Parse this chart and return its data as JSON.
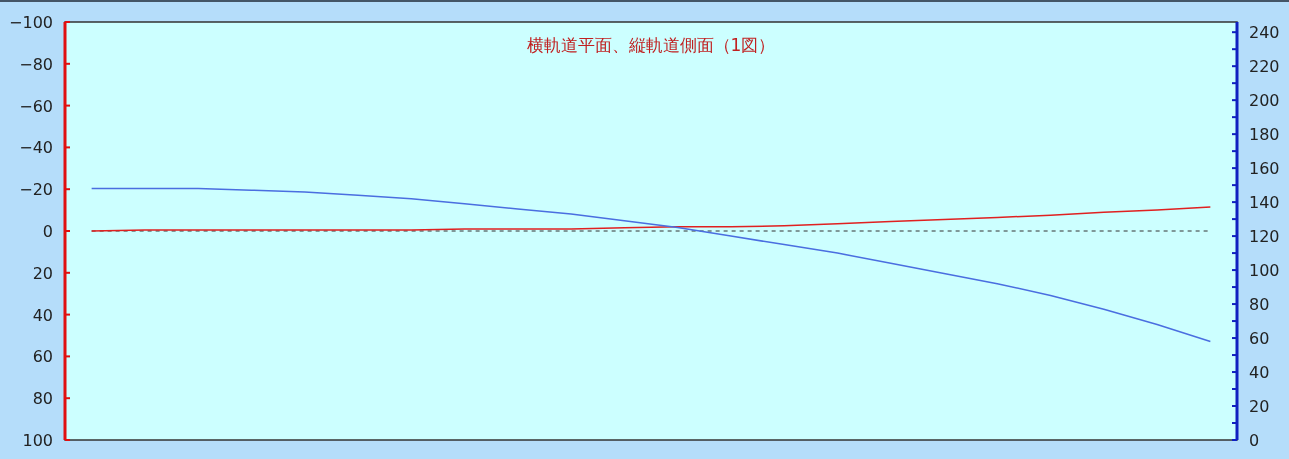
{
  "chart_data": {
    "type": "line",
    "title": "横軌道平面、縦軌道側面（1図）",
    "categories": [
      null,
      null,
      null,
      null,
      null,
      null,
      null,
      null,
      null,
      null,
      null,
      null,
      null,
      null,
      null,
      null,
      null,
      null,
      null,
      null,
      null,
      null
    ],
    "series": [
      {
        "color": "#e02020",
        "values": [
          0,
          -0.5,
          -0.5,
          -0.5,
          -0.5,
          -0.5,
          -0.5,
          -1,
          -1,
          -1,
          -1.5,
          -2,
          -2,
          -2.5,
          -3.5,
          -4.5,
          -5.5,
          -6.5,
          -7.5,
          -9,
          -10,
          -11.5
        ]
      },
      {
        "color": "#4a6ee0",
        "axis": "y2",
        "values": [
          148,
          148,
          148,
          147,
          146,
          144,
          142,
          139,
          136,
          133,
          129,
          125,
          120,
          115,
          110,
          104,
          98,
          92,
          85,
          77,
          68,
          58
        ]
      }
    ],
    "ylim": [
      100,
      -100
    ],
    "yticks": [
      -100,
      -80,
      -60,
      -40,
      -20,
      0,
      20,
      40,
      60,
      80,
      100
    ],
    "y2lim": [
      0,
      246
    ],
    "y2ticks": [
      0,
      {
        "value": 10,
        "label": null
      },
      20,
      {
        "value": 30,
        "label": null
      },
      40,
      {
        "value": 50,
        "label": null
      },
      60,
      {
        "value": 70,
        "label": null
      },
      80,
      {
        "value": 90,
        "label": null
      },
      100,
      {
        "value": 110,
        "label": null
      },
      120,
      {
        "value": 130,
        "label": null
      },
      140,
      {
        "value": 150,
        "label": null
      },
      160,
      {
        "value": 170,
        "label": null
      },
      180,
      {
        "value": 190,
        "label": null
      },
      200,
      {
        "value": 210,
        "label": null
      },
      220,
      {
        "value": 230,
        "label": null
      },
      240
    ],
    "ref_lines": [
      {
        "axis": "y",
        "value": 0,
        "color": "#333333",
        "line_style": "dashed"
      }
    ],
    "grid": false,
    "marker": "none",
    "line_style": "solid"
  }
}
